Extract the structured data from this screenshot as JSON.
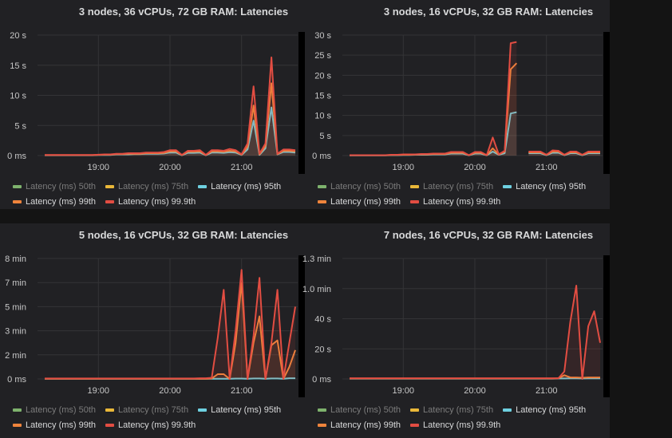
{
  "colors": {
    "p50": "#7eb26d",
    "p75": "#eab839",
    "p95": "#6ed0e0",
    "p99": "#ef843c",
    "p999": "#e24d42",
    "grid": "#343436",
    "text": "#c7c7c7"
  },
  "legend": [
    {
      "key": "p50",
      "label": "Latency (ms) 50th",
      "visible": false
    },
    {
      "key": "p75",
      "label": "Latency (ms) 75th",
      "visible": false
    },
    {
      "key": "p95",
      "label": "Latency (ms) 95th",
      "visible": true
    },
    {
      "key": "p99",
      "label": "Latency (ms) 99th",
      "visible": true
    },
    {
      "key": "p999",
      "label": "Latency (ms) 99.9th",
      "visible": true
    }
  ],
  "chart_data": [
    {
      "type": "line",
      "title": "3 nodes, 36 vCPUs, 72 GB RAM: Latencies",
      "unit": "s",
      "xlim": [
        "18:09",
        "21:47"
      ],
      "xticks": [
        "19:00",
        "20:00",
        "21:00"
      ],
      "ylim": [
        0,
        20
      ],
      "yticks": [
        0,
        5,
        10,
        15,
        20
      ],
      "ytick_labels": [
        "0 ms",
        "5 s",
        "10 s",
        "15 s",
        "20 s"
      ],
      "x_start": "18:15",
      "x_step_min": 5,
      "series": [
        {
          "key": "p95",
          "values": [
            0.05,
            0.05,
            0.05,
            0.05,
            0.05,
            0.05,
            0.05,
            0.05,
            0.05,
            0.1,
            0.1,
            0.1,
            0.2,
            0.2,
            0.2,
            0.25,
            0.25,
            0.3,
            0.3,
            0.3,
            0.35,
            0.5,
            0.5,
            0.05,
            0.45,
            0.45,
            0.5,
            0.05,
            0.5,
            0.5,
            0.45,
            0.55,
            0.5,
            0.1,
            1.0,
            5.8,
            0.1,
            1.2,
            8.0,
            0.2,
            0.6,
            0.6,
            0.5
          ]
        },
        {
          "key": "p99",
          "values": [
            0.08,
            0.08,
            0.08,
            0.08,
            0.08,
            0.08,
            0.08,
            0.08,
            0.08,
            0.12,
            0.15,
            0.15,
            0.25,
            0.25,
            0.3,
            0.3,
            0.3,
            0.4,
            0.4,
            0.4,
            0.45,
            0.7,
            0.7,
            0.08,
            0.65,
            0.65,
            0.7,
            0.08,
            0.7,
            0.7,
            0.65,
            0.8,
            0.7,
            0.15,
            1.5,
            8.3,
            0.2,
            1.6,
            12.0,
            0.25,
            0.8,
            0.8,
            0.7
          ]
        },
        {
          "key": "p999",
          "values": [
            0.1,
            0.1,
            0.1,
            0.1,
            0.1,
            0.1,
            0.1,
            0.1,
            0.1,
            0.15,
            0.2,
            0.2,
            0.3,
            0.3,
            0.4,
            0.4,
            0.4,
            0.5,
            0.5,
            0.5,
            0.6,
            0.9,
            0.9,
            0.1,
            0.8,
            0.8,
            0.9,
            0.1,
            0.9,
            0.9,
            0.8,
            1.1,
            0.9,
            0.2,
            2.0,
            11.5,
            0.3,
            2.0,
            16.3,
            0.3,
            1.0,
            1.0,
            0.9
          ]
        }
      ]
    },
    {
      "type": "line",
      "title": "3 nodes, 16 vCPUs, 32 GB RAM: Latencies",
      "unit": "s",
      "xlim": [
        "18:09",
        "21:47"
      ],
      "xticks": [
        "19:00",
        "20:00",
        "21:00"
      ],
      "ylim": [
        0,
        30
      ],
      "yticks": [
        0,
        5,
        10,
        15,
        20,
        25,
        30
      ],
      "ytick_labels": [
        "0 ms",
        "5 s",
        "10 s",
        "15 s",
        "20 s",
        "25 s",
        "30 s"
      ],
      "x_start": "18:15",
      "x_step_min": 5,
      "series": [
        {
          "key": "p95",
          "values": [
            0.05,
            0.05,
            0.05,
            0.05,
            0.05,
            0.05,
            0.05,
            0.1,
            0.1,
            0.15,
            0.15,
            0.2,
            0.2,
            0.2,
            0.3,
            0.3,
            0.3,
            0.5,
            0.5,
            0.5,
            0.05,
            0.5,
            0.5,
            0.05,
            1.0,
            0.2,
            0.6,
            10.5,
            10.8,
            null,
            0.6,
            0.6,
            0.6,
            0.1,
            0.7,
            0.7,
            0.1,
            0.6,
            0.6,
            0.1,
            0.6,
            0.6,
            0.6
          ]
        },
        {
          "key": "p99",
          "values": [
            0.08,
            0.08,
            0.08,
            0.08,
            0.08,
            0.08,
            0.08,
            0.15,
            0.15,
            0.2,
            0.2,
            0.25,
            0.3,
            0.3,
            0.4,
            0.4,
            0.4,
            0.7,
            0.7,
            0.7,
            0.08,
            0.7,
            0.7,
            0.08,
            1.8,
            0.25,
            1.0,
            21.5,
            23.0,
            null,
            0.8,
            0.8,
            0.8,
            0.15,
            1.0,
            1.0,
            0.15,
            0.8,
            0.8,
            0.15,
            0.8,
            0.8,
            0.8
          ]
        },
        {
          "key": "p999",
          "values": [
            0.1,
            0.1,
            0.1,
            0.1,
            0.1,
            0.1,
            0.1,
            0.2,
            0.2,
            0.3,
            0.3,
            0.3,
            0.4,
            0.4,
            0.5,
            0.5,
            0.5,
            0.9,
            0.9,
            0.9,
            0.1,
            0.9,
            0.9,
            0.1,
            4.5,
            0.3,
            1.2,
            28.0,
            28.3,
            null,
            1.0,
            1.0,
            1.0,
            0.2,
            1.3,
            1.2,
            0.2,
            1.0,
            1.0,
            0.2,
            1.0,
            1.0,
            1.0
          ]
        }
      ]
    },
    {
      "type": "line",
      "title": "5 nodes, 16 vCPUs, 32 GB RAM: Latencies",
      "unit": "s",
      "xlim": [
        "18:09",
        "21:47"
      ],
      "xticks": [
        "19:00",
        "20:00",
        "21:00"
      ],
      "ylim": [
        0,
        500
      ],
      "yticks": [
        0,
        100,
        200,
        300,
        400,
        500
      ],
      "ytick_labels": [
        "0 ms",
        "2 min",
        "3 min",
        "5 min",
        "7 min",
        "8 min"
      ],
      "x_start": "18:15",
      "x_step_min": 5,
      "series": [
        {
          "key": "p95",
          "values": [
            0.5,
            0.5,
            0.5,
            0.5,
            0.5,
            0.5,
            0.5,
            0.5,
            0.5,
            0.5,
            0.5,
            0.5,
            0.5,
            0.5,
            0.5,
            0.5,
            0.5,
            0.5,
            0.5,
            0.5,
            0.5,
            0.5,
            0.5,
            0.5,
            0.5,
            0.5,
            0.5,
            0.5,
            0.5,
            1,
            1,
            0.5,
            1.5,
            1.5,
            0.5,
            2,
            2,
            0.5,
            2,
            2,
            0.5,
            3,
            3
          ]
        },
        {
          "key": "p99",
          "values": [
            1,
            1,
            1,
            1,
            1,
            1,
            1,
            1,
            1,
            1,
            1,
            1,
            1,
            1,
            1,
            1,
            1,
            1,
            1,
            1,
            1,
            1,
            1,
            1,
            1,
            1,
            1,
            1,
            2,
            20,
            20,
            0,
            150,
            400,
            0,
            150,
            260,
            0,
            140,
            160,
            0,
            50,
            120
          ]
        },
        {
          "key": "p999",
          "values": [
            2,
            2,
            2,
            2,
            2,
            2,
            2,
            2,
            2,
            2,
            2,
            2,
            2,
            2,
            2,
            2,
            2,
            2,
            2,
            2,
            2,
            2,
            2,
            2,
            2,
            2,
            3,
            3,
            5,
            170,
            370,
            0,
            200,
            453,
            0,
            180,
            420,
            0,
            150,
            370,
            0,
            150,
            300
          ]
        }
      ]
    },
    {
      "type": "line",
      "title": "7 nodes, 16 vCPUs, 32 GB RAM: Latencies",
      "unit": "s",
      "xlim": [
        "18:09",
        "21:47"
      ],
      "xticks": [
        "19:00",
        "20:00",
        "21:00"
      ],
      "ylim": [
        0,
        80
      ],
      "yticks": [
        0,
        20,
        40,
        60,
        80
      ],
      "ytick_labels": [
        "0 ms",
        "20 s",
        "40 s",
        "1.0 min",
        "1.3 min"
      ],
      "x_start": "18:15",
      "x_step_min": 5,
      "series": [
        {
          "key": "p95",
          "values": [
            0.2,
            0.2,
            0.2,
            0.2,
            0.2,
            0.2,
            0.2,
            0.2,
            0.2,
            0.2,
            0.2,
            0.2,
            0.2,
            0.2,
            0.2,
            0.2,
            0.2,
            0.2,
            0.2,
            0.2,
            0.2,
            0.2,
            0.2,
            0.2,
            0.2,
            0.2,
            0.2,
            0.2,
            0.2,
            0.2,
            0.2,
            0.2,
            0.2,
            0.2,
            0.2,
            0.3,
            0.3,
            0.4,
            0.4,
            0.3,
            0.4,
            0.4,
            0.4
          ]
        },
        {
          "key": "p99",
          "values": [
            0.3,
            0.3,
            0.3,
            0.3,
            0.3,
            0.3,
            0.3,
            0.3,
            0.3,
            0.3,
            0.3,
            0.3,
            0.3,
            0.3,
            0.3,
            0.3,
            0.3,
            0.3,
            0.3,
            0.3,
            0.3,
            0.3,
            0.3,
            0.3,
            0.3,
            0.3,
            0.3,
            0.3,
            0.3,
            0.3,
            0.3,
            0.3,
            0.3,
            0.3,
            0.3,
            0.5,
            2.5,
            1,
            1,
            0.8,
            1,
            1,
            1
          ]
        },
        {
          "key": "p999",
          "values": [
            0.5,
            0.5,
            0.5,
            0.5,
            0.5,
            0.5,
            0.5,
            0.5,
            0.5,
            0.5,
            0.5,
            0.5,
            0.5,
            0.5,
            0.5,
            0.5,
            0.5,
            0.5,
            0.5,
            0.5,
            0.5,
            0.5,
            0.5,
            0.5,
            0.5,
            0.5,
            0.5,
            0.5,
            0.5,
            0.5,
            0.5,
            0.5,
            0.5,
            0.5,
            0.5,
            0.5,
            5,
            38,
            62,
            0,
            35,
            45,
            24
          ]
        }
      ]
    }
  ]
}
